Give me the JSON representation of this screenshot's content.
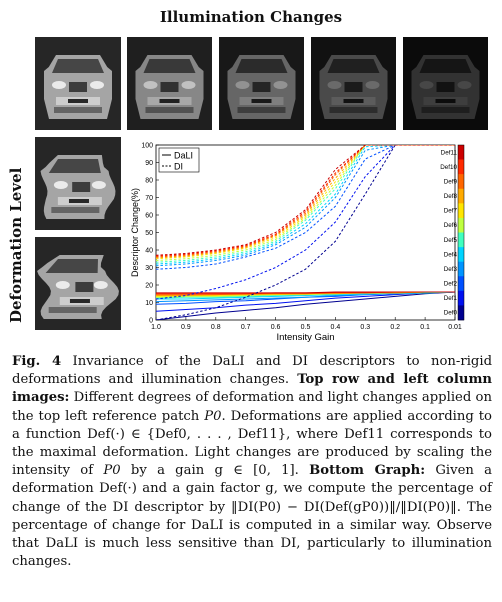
{
  "figure": {
    "top_title": "Illumination Changes",
    "side_title": "Deformation Level"
  },
  "images": {
    "row": [
      {
        "brightness": 1.0
      },
      {
        "brightness": 0.82
      },
      {
        "brightness": 0.62
      },
      {
        "brightness": 0.45
      },
      {
        "brightness": 0.3
      }
    ],
    "column": [
      {
        "deformation": 0.0
      },
      {
        "deformation": 0.5
      },
      {
        "deformation": 1.0
      }
    ]
  },
  "chart_data": {
    "type": "line",
    "title": "",
    "xlabel": "Intensity Gain",
    "ylabel": "Descriptor Change(%)",
    "x": [
      1.0,
      0.9,
      0.8,
      0.7,
      0.6,
      0.5,
      0.4,
      0.3,
      0.2,
      0.1,
      0.01
    ],
    "xticks": [
      "1.0",
      "0.9",
      "0.8",
      "0.7",
      "0.6",
      "0.5",
      "0.4",
      "0.3",
      "0.2",
      "0.1",
      "0.01"
    ],
    "ylim": [
      0,
      100
    ],
    "yticks": [
      0,
      10,
      20,
      30,
      40,
      50,
      60,
      70,
      80,
      90,
      100
    ],
    "legend": [
      "DaLI",
      "DI"
    ],
    "legend_position": "top-left",
    "colorbar_labels": [
      "Def11",
      "Def10",
      "Def9",
      "Def8",
      "Def7",
      "Def6",
      "Def5",
      "Def4",
      "Def3",
      "Def2",
      "Def1",
      "Def0"
    ],
    "colorbar_colors": [
      "#cc0000",
      "#ff2a00",
      "#ff6600",
      "#ffaa00",
      "#ffe600",
      "#bfff40",
      "#40ffbf",
      "#00d4ff",
      "#0094ff",
      "#0050ff",
      "#0010f0",
      "#000090"
    ],
    "series": [
      {
        "style": "solid",
        "deformation": 0,
        "values": [
          0,
          2,
          4,
          5.5,
          7,
          9,
          10.5,
          12,
          13.5,
          15,
          16
        ]
      },
      {
        "style": "solid",
        "deformation": 1,
        "values": [
          5,
          6,
          7,
          8.5,
          9.5,
          11,
          12.5,
          13.5,
          14.5,
          15.5,
          16
        ]
      },
      {
        "style": "solid",
        "deformation": 2,
        "values": [
          9,
          9.5,
          10.5,
          11,
          12,
          13,
          13.5,
          14.5,
          15,
          15.5,
          16
        ]
      },
      {
        "style": "solid",
        "deformation": 3,
        "values": [
          10.5,
          11,
          11.5,
          12,
          12.5,
          13,
          14,
          14.5,
          15,
          15.5,
          16
        ]
      },
      {
        "style": "solid",
        "deformation": 4,
        "values": [
          12,
          12,
          12.5,
          13,
          13.5,
          14,
          14.5,
          15,
          15.5,
          15.5,
          16
        ]
      },
      {
        "style": "solid",
        "deformation": 5,
        "values": [
          12.5,
          13,
          13,
          13.5,
          14,
          14.5,
          15,
          15,
          15.5,
          15.5,
          16
        ]
      },
      {
        "style": "solid",
        "deformation": 6,
        "values": [
          13,
          13.5,
          13.5,
          14,
          14.5,
          14.5,
          15,
          15.5,
          15.5,
          16,
          16
        ]
      },
      {
        "style": "solid",
        "deformation": 7,
        "values": [
          13.5,
          14,
          14,
          14.5,
          14.5,
          15,
          15,
          15.5,
          15.5,
          16,
          16
        ]
      },
      {
        "style": "solid",
        "deformation": 8,
        "values": [
          14,
          14,
          14.5,
          14.5,
          15,
          15,
          15.5,
          15.5,
          15.5,
          16,
          16
        ]
      },
      {
        "style": "solid",
        "deformation": 9,
        "values": [
          14.5,
          14.5,
          14.5,
          15,
          15,
          15,
          15.5,
          15.5,
          16,
          16,
          16
        ]
      },
      {
        "style": "solid",
        "deformation": 10,
        "values": [
          15,
          15,
          15,
          15,
          15.5,
          15.5,
          15.5,
          15.5,
          16,
          16,
          16
        ]
      },
      {
        "style": "solid",
        "deformation": 11,
        "values": [
          15.5,
          15.5,
          15.5,
          15.5,
          15.5,
          15.5,
          16,
          16,
          16,
          16,
          16
        ]
      },
      {
        "style": "dashed",
        "deformation": 0,
        "values": [
          0,
          3,
          7,
          13,
          20,
          29,
          45,
          72,
          100,
          100,
          100
        ]
      },
      {
        "style": "dashed",
        "deformation": 1,
        "values": [
          12,
          14,
          18,
          23,
          30,
          40,
          56,
          82,
          100,
          100,
          100
        ]
      },
      {
        "style": "dashed",
        "deformation": 2,
        "values": [
          29,
          30,
          32,
          36,
          41,
          50,
          65,
          92,
          100,
          100,
          100
        ]
      },
      {
        "style": "dashed",
        "deformation": 3,
        "values": [
          31,
          32,
          34,
          37,
          43,
          53,
          70,
          97,
          100,
          100,
          100
        ]
      },
      {
        "style": "dashed",
        "deformation": 4,
        "values": [
          32,
          33,
          35,
          38,
          44,
          55,
          72,
          99,
          100,
          100,
          100
        ]
      },
      {
        "style": "dashed",
        "deformation": 5,
        "values": [
          33,
          34,
          36,
          39,
          45,
          57,
          75,
          100,
          100,
          100,
          100
        ]
      },
      {
        "style": "dashed",
        "deformation": 6,
        "values": [
          34,
          35,
          37,
          40,
          46,
          58,
          77,
          100,
          100,
          100,
          100
        ]
      },
      {
        "style": "dashed",
        "deformation": 7,
        "values": [
          35,
          36,
          38,
          41,
          47,
          59,
          79,
          100,
          100,
          100,
          100
        ]
      },
      {
        "style": "dashed",
        "deformation": 8,
        "values": [
          35.5,
          36.5,
          38.5,
          41.5,
          48,
          60,
          81,
          100,
          100,
          100,
          100
        ]
      },
      {
        "style": "dashed",
        "deformation": 9,
        "values": [
          36,
          37,
          39,
          42,
          48.5,
          61,
          83,
          100,
          100,
          100,
          100
        ]
      },
      {
        "style": "dashed",
        "deformation": 10,
        "values": [
          36.5,
          37.5,
          39.5,
          42.5,
          49,
          62,
          84,
          100,
          100,
          100,
          100
        ]
      },
      {
        "style": "dashed",
        "deformation": 11,
        "values": [
          37,
          38,
          40,
          43,
          50,
          63,
          86,
          100,
          100,
          100,
          100
        ]
      }
    ]
  },
  "caption": {
    "fig_label": "Fig. 4",
    "intro": "Invariance of the DaLI and DI descriptors to non-rigid deformations and illumination changes.",
    "top_heading": "Top row and left column images:",
    "top_text_1": "Different degrees of deformation and light changes applied on the top left reference patch",
    "p0": "P0",
    "top_text_2": ". Deformations are applied according to a function Def(·) ∈ {Def0, . . . , Def11}, where Def11 corresponds to the maximal deformation. Light changes are produced by scaling the intensity of",
    "top_text_3": "by a gain g ∈ [0, 1].",
    "bottom_heading": "Bottom Graph:",
    "bottom_text_1": "Given a deformation Def(·) and a gain factor g, we compute the percentage of change of the DI descriptor by",
    "formula": "‖DI(P0) − DI(Def(gP0))‖/‖DI(P0)‖.",
    "bottom_text_2": "The percentage of change for DaLI is computed in a similar way. Observe that DaLI is much less sensitive than DI, particularly to illumination changes."
  }
}
